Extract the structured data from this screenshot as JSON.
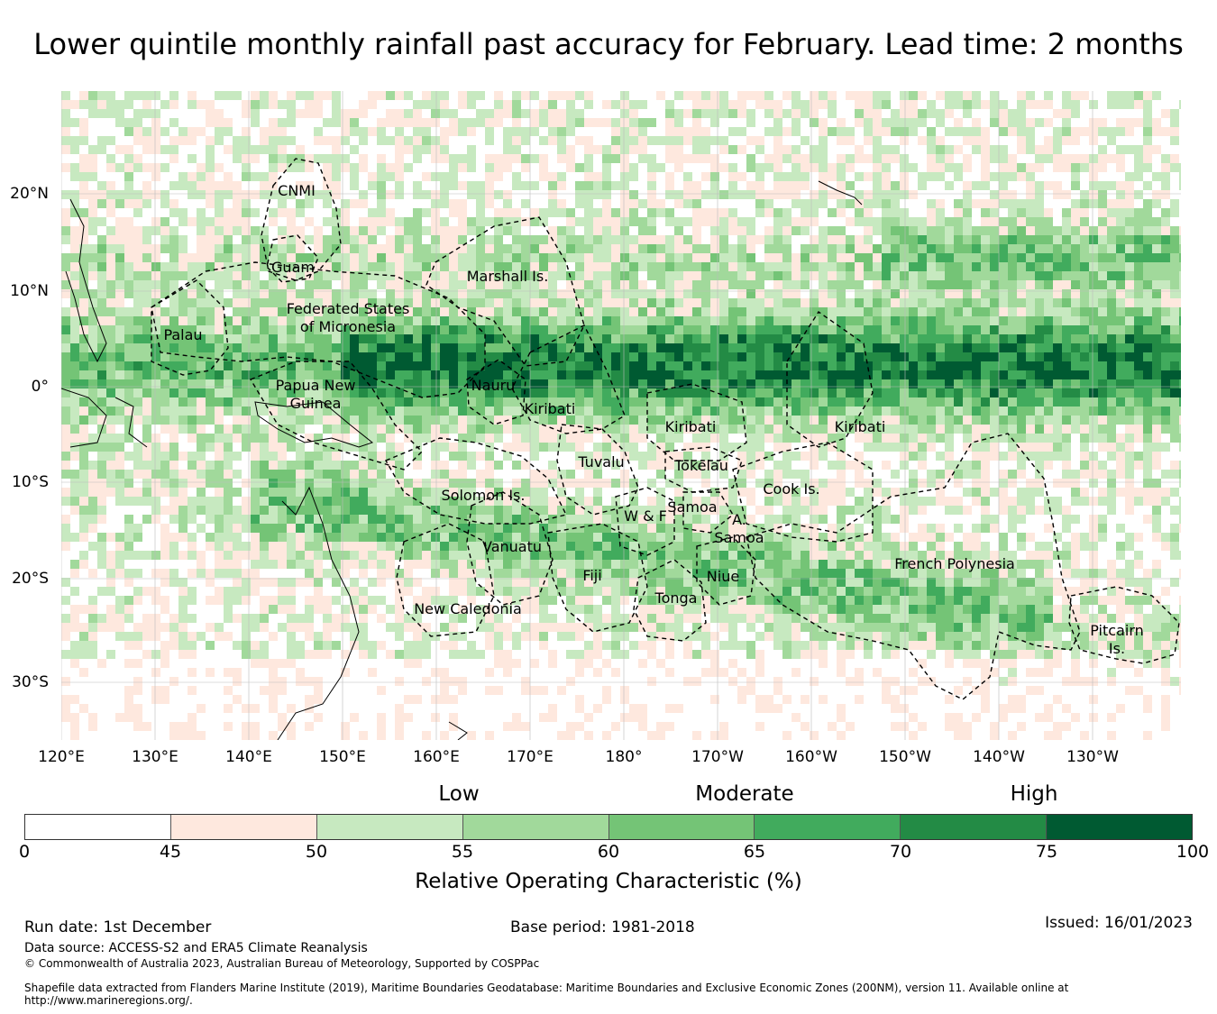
{
  "title": "Lower quintile monthly rainfall past accuracy for February. Lead time: 2 months",
  "lon_ticks": [
    "120°E",
    "130°E",
    "140°E",
    "150°E",
    "160°E",
    "170°E",
    "180°",
    "170°W",
    "160°W",
    "150°W",
    "140°W",
    "130°W"
  ],
  "lat_ticks": [
    "20°N",
    "10°N",
    "0°",
    "10°S",
    "20°S",
    "30°S"
  ],
  "regions": [
    {
      "name": "CNMI"
    },
    {
      "name": "Guam"
    },
    {
      "name": "Marshall Is."
    },
    {
      "name": "Federated States\nof Micronesia"
    },
    {
      "name": "Palau"
    },
    {
      "name": "Papua New\nGuinea"
    },
    {
      "name": "Nauru"
    },
    {
      "name": "Kiribati"
    },
    {
      "name": "Kiribati"
    },
    {
      "name": "Kiribati"
    },
    {
      "name": "Tuvalu"
    },
    {
      "name": "Tokelau"
    },
    {
      "name": "Solomon Is."
    },
    {
      "name": "Cook Is."
    },
    {
      "name": "Samoa"
    },
    {
      "name": "W & F"
    },
    {
      "name": "A.\nSamoa"
    },
    {
      "name": "Vanuatu"
    },
    {
      "name": "Fiji"
    },
    {
      "name": "Niue"
    },
    {
      "name": "Tonga"
    },
    {
      "name": "New Caledonia"
    },
    {
      "name": "French Polynesia"
    },
    {
      "name": "Pitcairn\nIs."
    }
  ],
  "legend": {
    "categories": [
      "Low",
      "Moderate",
      "High"
    ],
    "ticks": [
      "0",
      "45",
      "50",
      "55",
      "60",
      "65",
      "70",
      "75",
      "100"
    ],
    "colors": [
      "#ffffff",
      "#fee8de",
      "#c7e9c0",
      "#a1d99b",
      "#74c476",
      "#41ab5d",
      "#238b45",
      "#005a32"
    ],
    "label": "Relative Operating Characteristic (%)"
  },
  "footer": {
    "run_date": "Run date: 1st December",
    "base_period": "Base period: 1981-2018",
    "issued": "Issued: 16/01/2023",
    "data_source": "Data source: ACCESS-S2 and ERA5 Climate Reanalysis",
    "copyright": "© Commonwealth of Australia 2023, Australian Bureau of Meteorology, Supported by COSPPac",
    "shapefile": "Shapefile data extracted from Flanders Marine Institute (2019), Maritime Boundaries Geodatabase: Maritime Boundaries and Exclusive Economic Zones (200NM), version 11. Available online at http://www.marineregions.org/."
  }
}
